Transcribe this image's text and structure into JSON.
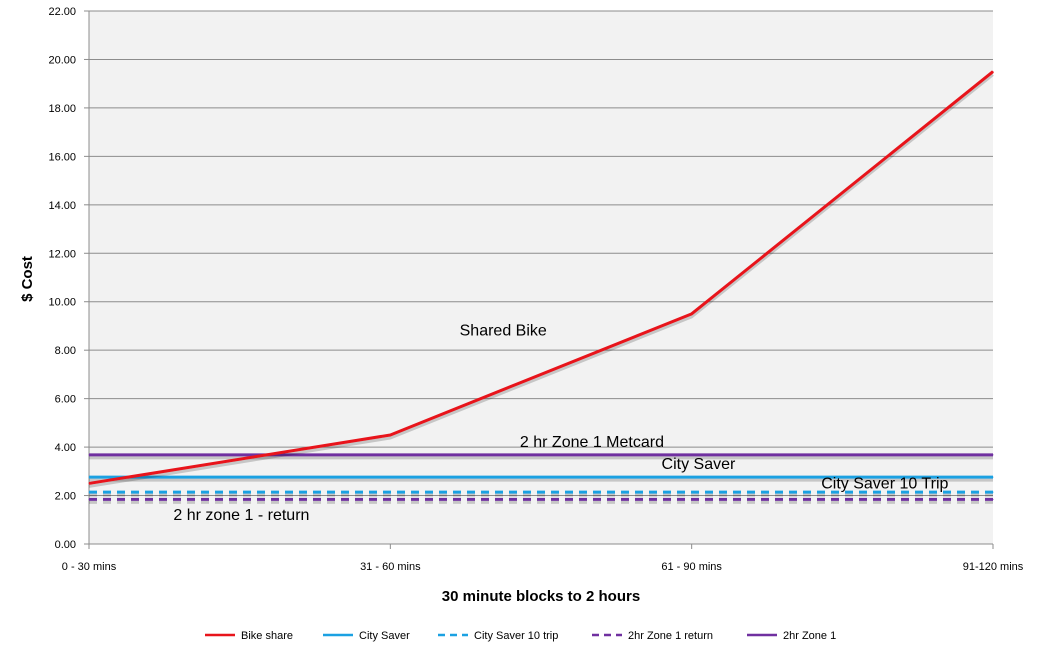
{
  "chart_data": {
    "type": "line",
    "title": "",
    "xlabel": "30 minute blocks to 2 hours",
    "ylabel": "$ Cost",
    "categories": [
      "0 - 30 mins",
      "31 - 60 mins",
      "61 - 90 mins",
      "91-120 mins"
    ],
    "ylim": [
      0,
      22
    ],
    "yticks": [
      "0.00",
      "2.00",
      "4.00",
      "6.00",
      "8.00",
      "10.00",
      "12.00",
      "14.00",
      "16.00",
      "18.00",
      "20.00",
      "22.00"
    ],
    "grid": true,
    "legend_position": "bottom",
    "series": [
      {
        "name": "Bike share",
        "values": [
          2.5,
          4.5,
          9.5,
          19.5
        ],
        "color": "#e8141b",
        "dash": false
      },
      {
        "name": "City Saver",
        "values": [
          2.76,
          2.76,
          2.76,
          2.76
        ],
        "color": "#1ba1e2",
        "dash": false
      },
      {
        "name": "City Saver 10 trip",
        "values": [
          2.14,
          2.14,
          2.14,
          2.14
        ],
        "color": "#1ba1e2",
        "dash": true
      },
      {
        "name": "2hr Zone 1 return",
        "values": [
          1.84,
          1.84,
          1.84,
          1.84
        ],
        "color": "#7030a0",
        "dash": true
      },
      {
        "name": "2hr Zone 1",
        "values": [
          3.68,
          3.68,
          3.68,
          3.68
        ],
        "color": "#7030a0",
        "dash": false
      }
    ],
    "annotations": [
      {
        "text": "Shared Bike",
        "x": 1.23,
        "y": 8.6
      },
      {
        "text": "2 hr Zone 1 Metcard",
        "x": 1.43,
        "y": 4.0
      },
      {
        "text": "City Saver",
        "x": 1.9,
        "y": 3.1
      },
      {
        "text": "City Saver 10 Trip",
        "x": 2.43,
        "y": 2.3
      },
      {
        "text": "2 hr zone 1 - return",
        "x": 0.28,
        "y": 1.0
      }
    ]
  }
}
